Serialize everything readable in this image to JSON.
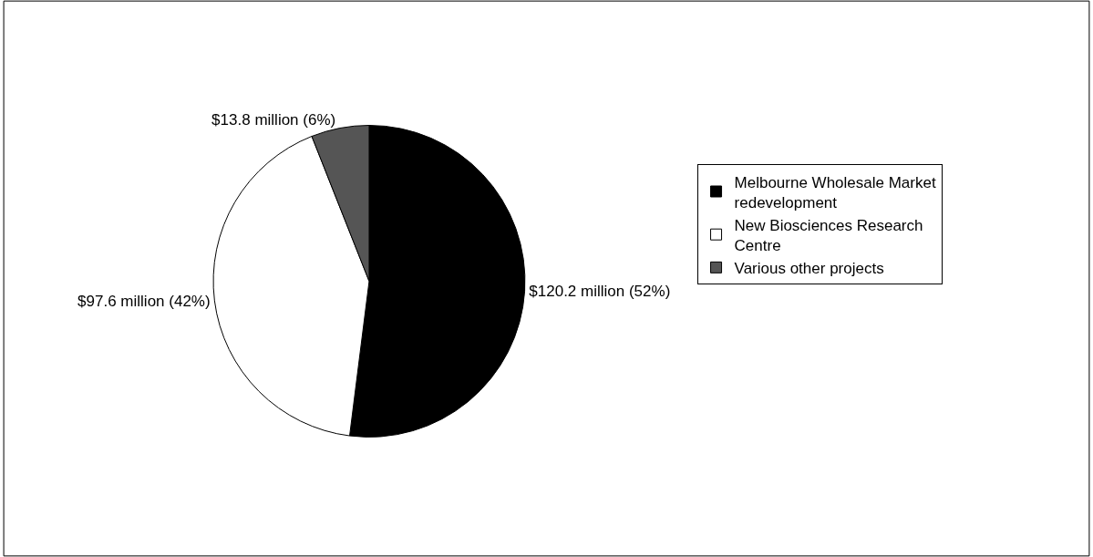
{
  "chart_data": {
    "type": "pie",
    "categories": [
      "Melbourne Wholesale Market redevelopment",
      "New Biosciences Research Centre",
      "Various other projects"
    ],
    "values": [
      52,
      42,
      6
    ],
    "colors": [
      "#000000",
      "#ffffff",
      "#555555"
    ],
    "value_labels": [
      "$120.2 million (52%)",
      "$97.6 million (42%)",
      "$13.8 million (6%)"
    ],
    "legend": "right"
  }
}
